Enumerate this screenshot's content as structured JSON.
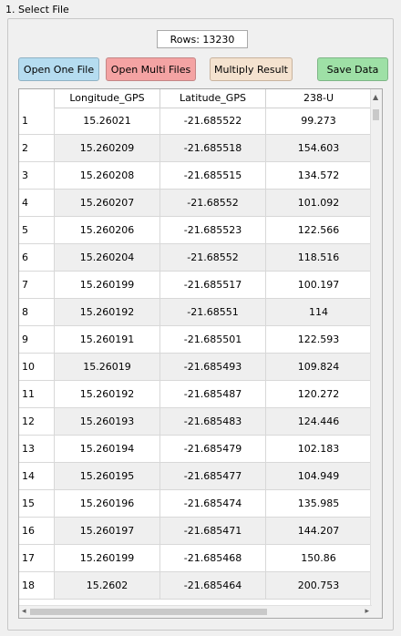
{
  "group_title": "1. Select File",
  "rows_label": "Rows: 13230",
  "buttons": {
    "open_one": "Open One File",
    "open_multi": "Open Multi Files",
    "multiply": "Multiply Result",
    "save": "Save Data"
  },
  "table": {
    "columns": [
      "Longitude_GPS",
      "Latitude_GPS",
      "238-U"
    ],
    "rows": [
      {
        "idx": "1",
        "lon": "15.26021",
        "lat": "-21.685522",
        "u": "99.273"
      },
      {
        "idx": "2",
        "lon": "15.260209",
        "lat": "-21.685518",
        "u": "154.603"
      },
      {
        "idx": "3",
        "lon": "15.260208",
        "lat": "-21.685515",
        "u": "134.572"
      },
      {
        "idx": "4",
        "lon": "15.260207",
        "lat": "-21.68552",
        "u": "101.092"
      },
      {
        "idx": "5",
        "lon": "15.260206",
        "lat": "-21.685523",
        "u": "122.566"
      },
      {
        "idx": "6",
        "lon": "15.260204",
        "lat": "-21.68552",
        "u": "118.516"
      },
      {
        "idx": "7",
        "lon": "15.260199",
        "lat": "-21.685517",
        "u": "100.197"
      },
      {
        "idx": "8",
        "lon": "15.260192",
        "lat": "-21.68551",
        "u": "114"
      },
      {
        "idx": "9",
        "lon": "15.260191",
        "lat": "-21.685501",
        "u": "122.593"
      },
      {
        "idx": "10",
        "lon": "15.26019",
        "lat": "-21.685493",
        "u": "109.824"
      },
      {
        "idx": "11",
        "lon": "15.260192",
        "lat": "-21.685487",
        "u": "120.272"
      },
      {
        "idx": "12",
        "lon": "15.260193",
        "lat": "-21.685483",
        "u": "124.446"
      },
      {
        "idx": "13",
        "lon": "15.260194",
        "lat": "-21.685479",
        "u": "102.183"
      },
      {
        "idx": "14",
        "lon": "15.260195",
        "lat": "-21.685477",
        "u": "104.949"
      },
      {
        "idx": "15",
        "lon": "15.260196",
        "lat": "-21.685474",
        "u": "135.985"
      },
      {
        "idx": "16",
        "lon": "15.260197",
        "lat": "-21.685471",
        "u": "144.207"
      },
      {
        "idx": "17",
        "lon": "15.260199",
        "lat": "-21.685468",
        "u": "150.86"
      },
      {
        "idx": "18",
        "lon": "15.2602",
        "lat": "-21.685464",
        "u": "200.753"
      }
    ]
  }
}
